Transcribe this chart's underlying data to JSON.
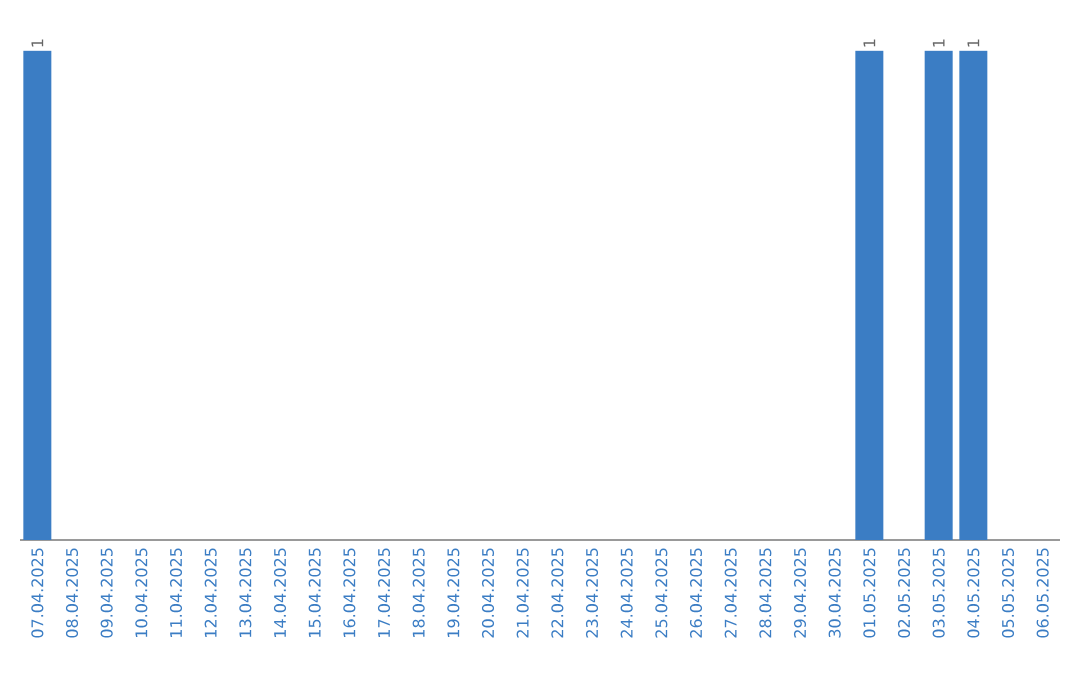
{
  "chart_data": {
    "type": "bar",
    "categories": [
      "07.04.2025",
      "08.04.2025",
      "09.04.2025",
      "10.04.2025",
      "11.04.2025",
      "12.04.2025",
      "13.04.2025",
      "14.04.2025",
      "15.04.2025",
      "16.04.2025",
      "17.04.2025",
      "18.04.2025",
      "19.04.2025",
      "20.04.2025",
      "21.04.2025",
      "22.04.2025",
      "23.04.2025",
      "24.04.2025",
      "25.04.2025",
      "26.04.2025",
      "27.04.2025",
      "28.04.2025",
      "29.04.2025",
      "30.04.2025",
      "01.05.2025",
      "02.05.2025",
      "03.05.2025",
      "04.05.2025",
      "05.05.2025",
      "06.05.2025"
    ],
    "values": [
      1,
      0,
      0,
      0,
      0,
      0,
      0,
      0,
      0,
      0,
      0,
      0,
      0,
      0,
      0,
      0,
      0,
      0,
      0,
      0,
      0,
      0,
      0,
      0,
      1,
      0,
      1,
      1,
      0,
      0
    ],
    "value_labels": [
      "1",
      null,
      null,
      null,
      null,
      null,
      null,
      null,
      null,
      null,
      null,
      null,
      null,
      null,
      null,
      null,
      null,
      null,
      null,
      null,
      null,
      null,
      null,
      null,
      "1",
      null,
      "1",
      "1",
      null,
      null
    ],
    "color": "#3b7dc4"
  }
}
